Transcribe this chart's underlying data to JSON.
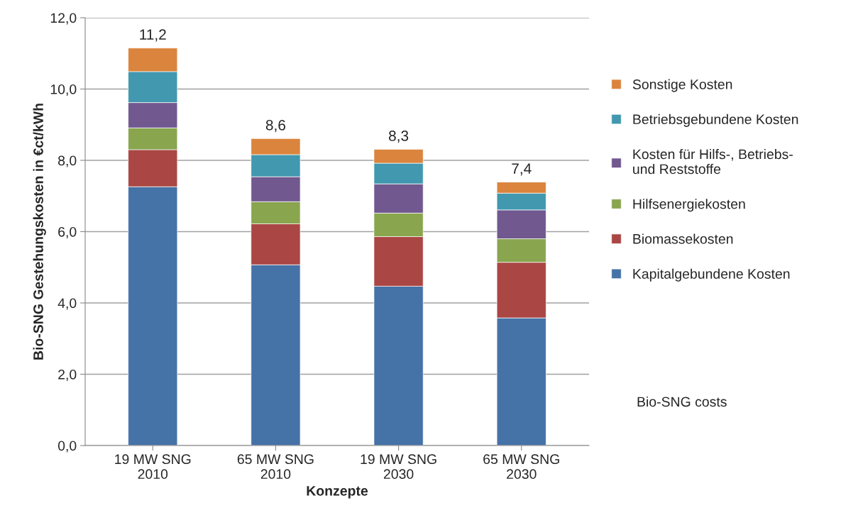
{
  "chart_data": {
    "type": "bar",
    "stacked": true,
    "xlabel": "Konzepte",
    "ylabel": "Bio-SNG Gestehungskosten in €ct/kWh",
    "categories": [
      "19 MW SNG\n2010",
      "65 MW SNG\n2010",
      "19 MW SNG\n2030",
      "65 MW SNG\n2030"
    ],
    "series": [
      {
        "name": "Kapitalgebundene Kosten",
        "color": "#4572a7",
        "values": [
          7.26,
          5.07,
          4.47,
          3.58
        ]
      },
      {
        "name": "Biomassekosten",
        "color": "#aa4643",
        "values": [
          1.04,
          1.15,
          1.39,
          1.56
        ]
      },
      {
        "name": "Hilfsenergiekosten",
        "color": "#89a54e",
        "values": [
          0.61,
          0.62,
          0.66,
          0.66
        ]
      },
      {
        "name": "Kosten für Hilfs-, Betriebs-\nund Reststoffe",
        "color": "#71588f",
        "values": [
          0.71,
          0.7,
          0.82,
          0.81
        ]
      },
      {
        "name": "Betriebsgebundene Kosten",
        "color": "#4198af",
        "values": [
          0.87,
          0.62,
          0.58,
          0.47
        ]
      },
      {
        "name": "Sonstige Kosten",
        "color": "#db843d",
        "values": [
          0.66,
          0.45,
          0.39,
          0.31
        ]
      }
    ],
    "totals": [
      "11,2",
      "8,6",
      "8,3",
      "7,4"
    ],
    "annotations": [
      "Bio-SNG costs"
    ],
    "ylim": [
      0,
      12
    ],
    "yticks": [
      {
        "value": 0,
        "label": "0,0"
      },
      {
        "value": 2,
        "label": "2,0"
      },
      {
        "value": 4,
        "label": "4,0"
      },
      {
        "value": 6,
        "label": "6,0"
      },
      {
        "value": 8,
        "label": "8,0"
      },
      {
        "value": 10,
        "label": "10,0"
      },
      {
        "value": 12,
        "label": "12,0"
      }
    ],
    "grid": "y",
    "legend": "right"
  }
}
